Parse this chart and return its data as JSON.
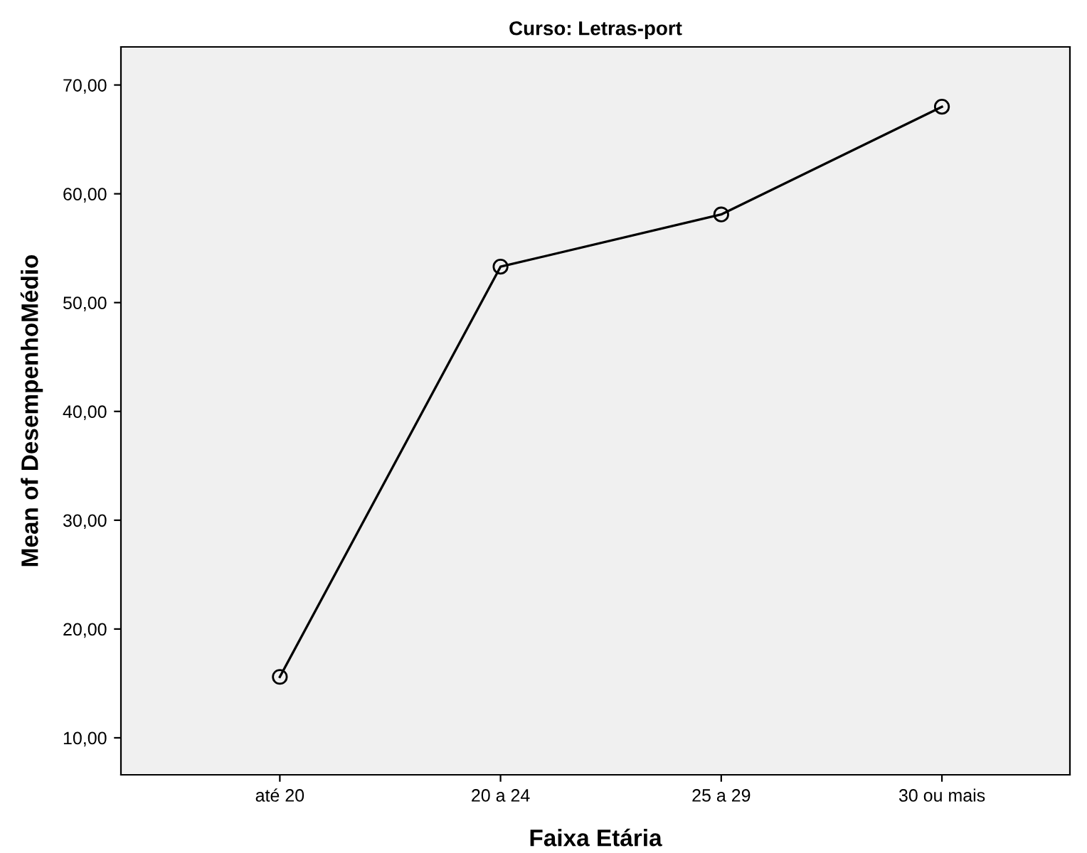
{
  "chart_data": {
    "type": "line",
    "title": "Curso: Letras-port",
    "xlabel": "Faixa Etária",
    "ylabel": "Mean of DesempenhoMédio",
    "categories": [
      "até 20",
      "20 a 24",
      "25 a 29",
      "30 ou mais"
    ],
    "series": [
      {
        "color": "#000000",
        "values": [
          15.6,
          53.3,
          58.1,
          68.0
        ]
      }
    ],
    "ylim": [
      6.6,
      73.5
    ],
    "yticks": [
      {
        "value": 10,
        "label": "10,00"
      },
      {
        "value": 20,
        "label": "20,00"
      },
      {
        "value": 30,
        "label": "30,00"
      },
      {
        "value": 40,
        "label": "40,00"
      },
      {
        "value": 50,
        "label": "50,00"
      },
      {
        "value": 60,
        "label": "60,00"
      },
      {
        "value": 70,
        "label": "70,00"
      }
    ],
    "grid": false,
    "marker": "circle",
    "line_style": "solid",
    "legend": false
  }
}
